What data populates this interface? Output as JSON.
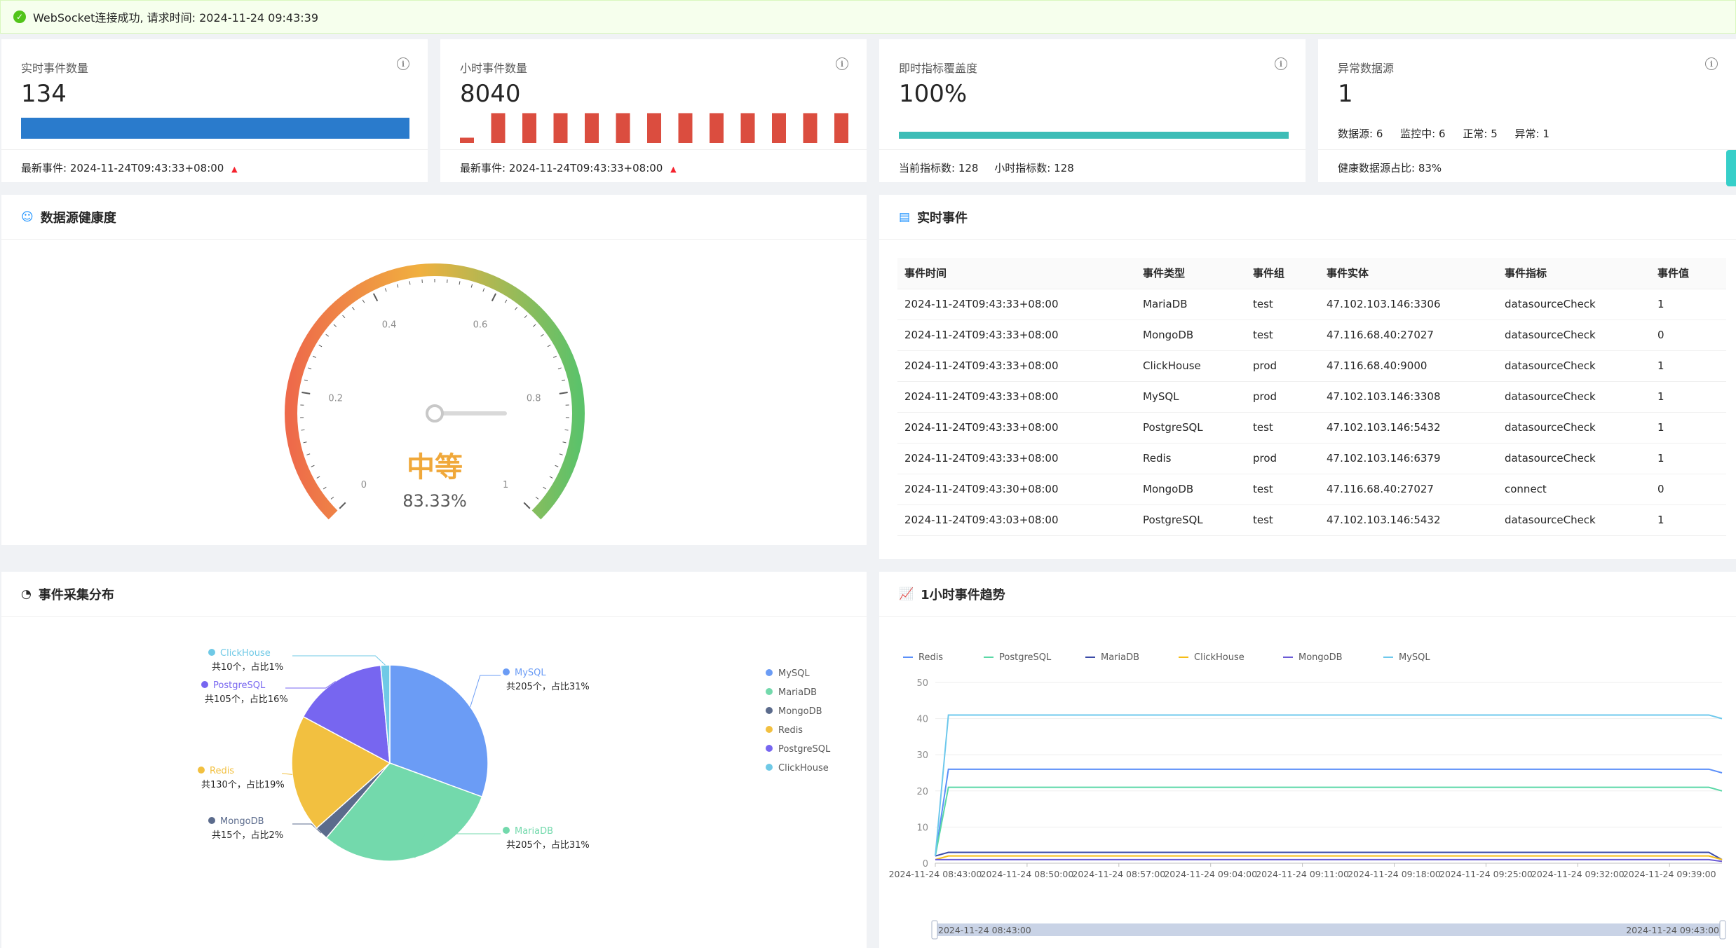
{
  "alert": {
    "text": "WebSocket连接成功, 请求时间: 2024-11-24 09:43:39"
  },
  "stats": {
    "realtime": {
      "title": "实时事件数量",
      "value": "134",
      "footer_label": "最新事件:",
      "footer_value": "2024-11-24T09:43:33+08:00"
    },
    "hourly": {
      "title": "小时事件数量",
      "value": "8040",
      "footer_label": "最新事件:",
      "footer_value": "2024-11-24T09:43:33+08:00",
      "bar_levels": [
        0.15,
        0.85,
        0.85,
        0.85,
        0.85,
        0.85,
        0.85,
        0.85,
        0.85,
        0.85,
        0.85,
        0.85,
        0.85
      ]
    },
    "coverage": {
      "title": "即时指标覆盖度",
      "value": "100%",
      "progress": 1.0,
      "footer_current_label": "当前指标数:",
      "footer_current": "128",
      "footer_hourly_label": "小时指标数:",
      "footer_hourly": "128"
    },
    "abnormal": {
      "title": "异常数据源",
      "value": "1",
      "ds_label": "数据源:",
      "ds": "6",
      "mon_label": "监控中:",
      "mon": "6",
      "normal_label": "正常:",
      "normal": "5",
      "abn_label": "异常:",
      "abn": "1",
      "footer": "健康数据源占比: 83%"
    }
  },
  "health": {
    "title": "数据源健康度",
    "level": "中等",
    "percent": "83.33%",
    "value": 0.8333,
    "ticks": [
      "0",
      "0.2",
      "0.4",
      "0.6",
      "0.8",
      "1"
    ]
  },
  "events": {
    "title": "实时事件",
    "columns": [
      "事件时间",
      "事件类型",
      "事件组",
      "事件实体",
      "事件指标",
      "事件值"
    ],
    "rows": [
      [
        "2024-11-24T09:43:33+08:00",
        "MariaDB",
        "test",
        "47.102.103.146:3306",
        "datasourceCheck",
        "1"
      ],
      [
        "2024-11-24T09:43:33+08:00",
        "MongoDB",
        "test",
        "47.116.68.40:27027",
        "datasourceCheck",
        "0"
      ],
      [
        "2024-11-24T09:43:33+08:00",
        "ClickHouse",
        "prod",
        "47.116.68.40:9000",
        "datasourceCheck",
        "1"
      ],
      [
        "2024-11-24T09:43:33+08:00",
        "MySQL",
        "prod",
        "47.102.103.146:3308",
        "datasourceCheck",
        "1"
      ],
      [
        "2024-11-24T09:43:33+08:00",
        "PostgreSQL",
        "test",
        "47.102.103.146:5432",
        "datasourceCheck",
        "1"
      ],
      [
        "2024-11-24T09:43:33+08:00",
        "Redis",
        "prod",
        "47.102.103.146:6379",
        "datasourceCheck",
        "1"
      ],
      [
        "2024-11-24T09:43:30+08:00",
        "MongoDB",
        "test",
        "47.116.68.40:27027",
        "connect",
        "0"
      ],
      [
        "2024-11-24T09:43:03+08:00",
        "PostgreSQL",
        "test",
        "47.102.103.146:5432",
        "datasourceCheck",
        "1"
      ]
    ]
  },
  "distribution": {
    "title": "事件采集分布",
    "slices": [
      {
        "name": "MySQL",
        "value": 205,
        "label": "共205个，占比31%",
        "color": "#6b9cf5"
      },
      {
        "name": "MariaDB",
        "value": 205,
        "label": "共205个，占比31%",
        "color": "#73d9ac"
      },
      {
        "name": "MongoDB",
        "value": 15,
        "label": "共15个，占比2%",
        "color": "#5b6b8c"
      },
      {
        "name": "Redis",
        "value": 130,
        "label": "共130个，占比19%",
        "color": "#f2c040"
      },
      {
        "name": "PostgreSQL",
        "value": 105,
        "label": "共105个，占比16%",
        "color": "#7766f0"
      },
      {
        "name": "ClickHouse",
        "value": 10,
        "label": "共10个，占比1%",
        "color": "#6fc9e6"
      }
    ]
  },
  "trend": {
    "title": "1小时事件趋势",
    "slider_start": "2024-11-24 08:43:00",
    "slider_end": "2024-11-24 09:43:00"
  },
  "chart_data": {
    "type": "line",
    "title": "1小时事件趋势",
    "x": [
      "2024-11-24 08:43:00",
      "2024-11-24 08:44:00",
      "2024-11-24 09:42:00",
      "2024-11-24 09:43:00"
    ],
    "x_tick_labels": [
      "2024-11-24 08:43:00",
      "2024-11-24 08:50:00",
      "2024-11-24 08:57:00",
      "2024-11-24 09:04:00",
      "2024-11-24 09:11:00",
      "2024-11-24 09:18:00",
      "2024-11-24 09:25:00",
      "2024-11-24 09:32:00",
      "2024-11-24 09:39:00"
    ],
    "ylim": [
      0,
      50
    ],
    "y_ticks": [
      "0",
      "10",
      "20",
      "30",
      "40",
      "50"
    ],
    "legend_position": "top",
    "series": [
      {
        "name": "Redis",
        "color": "#5b8ff9",
        "values": [
          2,
          26,
          26,
          25
        ]
      },
      {
        "name": "PostgreSQL",
        "color": "#5ad8a6",
        "values": [
          2,
          21,
          21,
          20
        ]
      },
      {
        "name": "MariaDB",
        "color": "#3b4ba8",
        "values": [
          2,
          3,
          3,
          1
        ]
      },
      {
        "name": "ClickHouse",
        "color": "#f6bd16",
        "values": [
          1,
          2,
          2,
          1
        ]
      },
      {
        "name": "MongoDB",
        "color": "#6b5bd6",
        "values": [
          1,
          1,
          1,
          0.5
        ]
      },
      {
        "name": "MySQL",
        "color": "#6dc8ec",
        "values": [
          2,
          41,
          41,
          40
        ]
      }
    ]
  }
}
